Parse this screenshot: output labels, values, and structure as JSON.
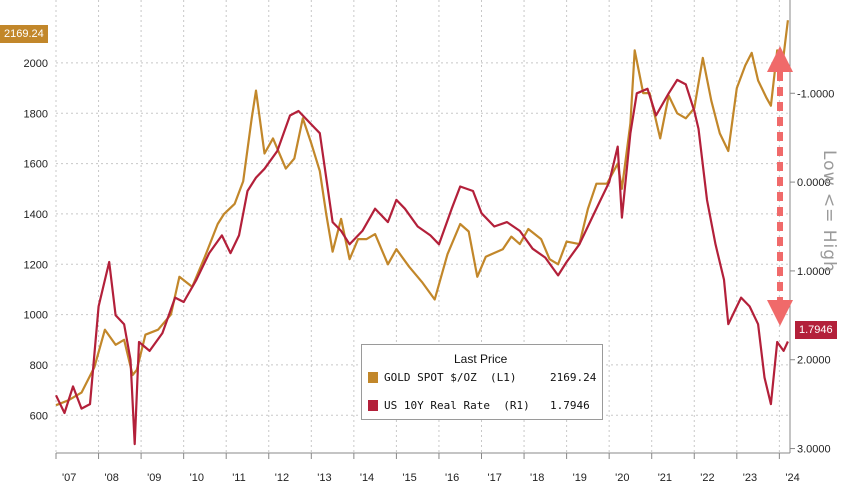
{
  "chart_data": {
    "type": "line",
    "title": "",
    "x_tick_labels": [
      "'07",
      "'08",
      "'09",
      "'10",
      "'11",
      "'12",
      "'13",
      "'14",
      "'15",
      "'16",
      "'17",
      "'18",
      "'19",
      "'20",
      "'21",
      "'22",
      "'23",
      "'24"
    ],
    "left_axis": {
      "ticks": [
        600,
        800,
        1000,
        1200,
        1400,
        1600,
        1800,
        2000
      ],
      "range": [
        450,
        2250
      ]
    },
    "right_axis": {
      "ticks": [
        "-1.0000",
        "0.0000",
        "1.0000",
        "2.0000",
        "3.0000"
      ],
      "tick_values": [
        -1,
        0,
        1,
        2,
        3
      ],
      "range": [
        -2.05,
        3.05
      ],
      "inverted": true
    },
    "right_axis_note": "Low <= High",
    "grid": true,
    "series": [
      {
        "name": "GOLD SPOT $/OZ  (L1)",
        "axis": "left",
        "color": "#c2872a",
        "last_value": "2169.24",
        "points": [
          [
            2007.0,
            640
          ],
          [
            2007.3,
            660
          ],
          [
            2007.6,
            690
          ],
          [
            2007.9,
            790
          ],
          [
            2008.15,
            940
          ],
          [
            2008.4,
            880
          ],
          [
            2008.6,
            900
          ],
          [
            2008.8,
            760
          ],
          [
            2008.9,
            780
          ],
          [
            2009.1,
            920
          ],
          [
            2009.4,
            940
          ],
          [
            2009.7,
            1000
          ],
          [
            2009.9,
            1150
          ],
          [
            2010.2,
            1110
          ],
          [
            2010.5,
            1230
          ],
          [
            2010.8,
            1360
          ],
          [
            2010.95,
            1400
          ],
          [
            2011.2,
            1440
          ],
          [
            2011.4,
            1530
          ],
          [
            2011.6,
            1780
          ],
          [
            2011.7,
            1890
          ],
          [
            2011.9,
            1640
          ],
          [
            2012.1,
            1700
          ],
          [
            2012.4,
            1580
          ],
          [
            2012.6,
            1620
          ],
          [
            2012.8,
            1780
          ],
          [
            2013.0,
            1680
          ],
          [
            2013.2,
            1570
          ],
          [
            2013.35,
            1400
          ],
          [
            2013.5,
            1250
          ],
          [
            2013.7,
            1380
          ],
          [
            2013.9,
            1220
          ],
          [
            2014.1,
            1300
          ],
          [
            2014.3,
            1300
          ],
          [
            2014.5,
            1320
          ],
          [
            2014.8,
            1200
          ],
          [
            2015.0,
            1260
          ],
          [
            2015.3,
            1190
          ],
          [
            2015.6,
            1130
          ],
          [
            2015.9,
            1060
          ],
          [
            2016.2,
            1240
          ],
          [
            2016.5,
            1360
          ],
          [
            2016.7,
            1330
          ],
          [
            2016.9,
            1150
          ],
          [
            2017.1,
            1230
          ],
          [
            2017.5,
            1260
          ],
          [
            2017.7,
            1310
          ],
          [
            2017.9,
            1280
          ],
          [
            2018.1,
            1340
          ],
          [
            2018.4,
            1300
          ],
          [
            2018.6,
            1220
          ],
          [
            2018.8,
            1200
          ],
          [
            2019.0,
            1290
          ],
          [
            2019.3,
            1280
          ],
          [
            2019.5,
            1420
          ],
          [
            2019.7,
            1520
          ],
          [
            2019.95,
            1520
          ],
          [
            2020.2,
            1600
          ],
          [
            2020.3,
            1500
          ],
          [
            2020.5,
            1760
          ],
          [
            2020.6,
            2050
          ],
          [
            2020.8,
            1880
          ],
          [
            2020.95,
            1880
          ],
          [
            2021.2,
            1700
          ],
          [
            2021.4,
            1870
          ],
          [
            2021.6,
            1800
          ],
          [
            2021.8,
            1780
          ],
          [
            2022.0,
            1820
          ],
          [
            2022.2,
            2020
          ],
          [
            2022.4,
            1850
          ],
          [
            2022.6,
            1720
          ],
          [
            2022.8,
            1650
          ],
          [
            2023.0,
            1900
          ],
          [
            2023.2,
            1990
          ],
          [
            2023.35,
            2040
          ],
          [
            2023.5,
            1930
          ],
          [
            2023.7,
            1860
          ],
          [
            2023.8,
            1830
          ],
          [
            2023.95,
            2050
          ],
          [
            2024.1,
            2030
          ],
          [
            2024.2,
            2169.24
          ]
        ]
      },
      {
        "name": "US 10Y Real Rate  (R1)",
        "axis": "right",
        "color": "#b3203a",
        "last_value": "1.7946",
        "points": [
          [
            2007.0,
            2.4
          ],
          [
            2007.2,
            2.6
          ],
          [
            2007.4,
            2.3
          ],
          [
            2007.6,
            2.55
          ],
          [
            2007.8,
            2.5
          ],
          [
            2008.0,
            1.4
          ],
          [
            2008.1,
            1.2
          ],
          [
            2008.25,
            0.9
          ],
          [
            2008.4,
            1.5
          ],
          [
            2008.6,
            1.6
          ],
          [
            2008.75,
            2.0
          ],
          [
            2008.85,
            2.95
          ],
          [
            2008.95,
            1.8
          ],
          [
            2009.2,
            1.9
          ],
          [
            2009.5,
            1.7
          ],
          [
            2009.8,
            1.3
          ],
          [
            2010.0,
            1.35
          ],
          [
            2010.3,
            1.1
          ],
          [
            2010.6,
            0.8
          ],
          [
            2010.9,
            0.6
          ],
          [
            2011.1,
            0.8
          ],
          [
            2011.3,
            0.6
          ],
          [
            2011.5,
            0.1
          ],
          [
            2011.7,
            -0.05
          ],
          [
            2011.9,
            -0.15
          ],
          [
            2012.2,
            -0.35
          ],
          [
            2012.5,
            -0.75
          ],
          [
            2012.7,
            -0.8
          ],
          [
            2013.0,
            -0.65
          ],
          [
            2013.2,
            -0.55
          ],
          [
            2013.5,
            0.45
          ],
          [
            2013.7,
            0.55
          ],
          [
            2013.9,
            0.7
          ],
          [
            2014.2,
            0.55
          ],
          [
            2014.5,
            0.3
          ],
          [
            2014.8,
            0.45
          ],
          [
            2015.0,
            0.2
          ],
          [
            2015.2,
            0.3
          ],
          [
            2015.5,
            0.5
          ],
          [
            2015.8,
            0.6
          ],
          [
            2016.0,
            0.7
          ],
          [
            2016.3,
            0.3
          ],
          [
            2016.5,
            0.05
          ],
          [
            2016.8,
            0.1
          ],
          [
            2017.0,
            0.35
          ],
          [
            2017.3,
            0.5
          ],
          [
            2017.6,
            0.45
          ],
          [
            2017.9,
            0.55
          ],
          [
            2018.2,
            0.75
          ],
          [
            2018.5,
            0.85
          ],
          [
            2018.8,
            1.05
          ],
          [
            2019.0,
            0.9
          ],
          [
            2019.3,
            0.7
          ],
          [
            2019.6,
            0.4
          ],
          [
            2019.8,
            0.2
          ],
          [
            2020.0,
            0.0
          ],
          [
            2020.2,
            -0.4
          ],
          [
            2020.3,
            0.4
          ],
          [
            2020.5,
            -0.55
          ],
          [
            2020.65,
            -1.0
          ],
          [
            2020.9,
            -1.05
          ],
          [
            2021.1,
            -0.75
          ],
          [
            2021.4,
            -1.0
          ],
          [
            2021.6,
            -1.15
          ],
          [
            2021.8,
            -1.1
          ],
          [
            2022.0,
            -0.8
          ],
          [
            2022.1,
            -0.6
          ],
          [
            2022.3,
            0.2
          ],
          [
            2022.5,
            0.7
          ],
          [
            2022.7,
            1.1
          ],
          [
            2022.8,
            1.6
          ],
          [
            2022.95,
            1.45
          ],
          [
            2023.1,
            1.3
          ],
          [
            2023.3,
            1.4
          ],
          [
            2023.5,
            1.6
          ],
          [
            2023.65,
            2.2
          ],
          [
            2023.8,
            2.5
          ],
          [
            2023.95,
            1.8
          ],
          [
            2024.1,
            1.9
          ],
          [
            2024.2,
            1.7946
          ]
        ]
      }
    ],
    "legend": {
      "header": "Last Price",
      "placement": "bottom-center",
      "entries": [
        {
          "name": "GOLD SPOT $/OZ  (L1)",
          "value": "2169.24",
          "color": "#c2872a"
        },
        {
          "name": "US 10Y Real Rate  (R1)",
          "value": "1.7946",
          "color": "#b3203a"
        }
      ]
    },
    "last_value_tags": {
      "left": "2169.24",
      "right": "1.7946"
    },
    "annotation_arrow": {
      "color": "#f06a6a",
      "style": "dashed double-headed vertical"
    }
  }
}
